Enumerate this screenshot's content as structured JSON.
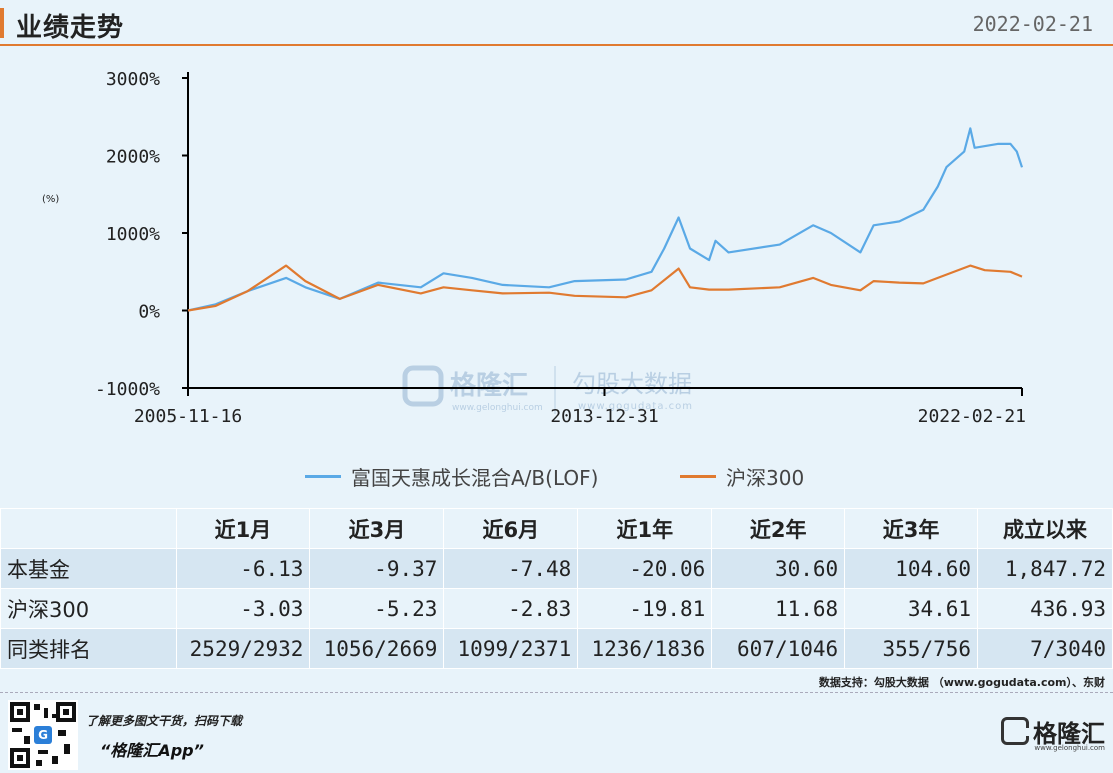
{
  "header": {
    "title": "业绩走势",
    "date": "2022-02-21"
  },
  "colors": {
    "accent": "#e07a30",
    "fund": "#5aa9e6",
    "index": "#e07a30",
    "background": "#e8f3fa"
  },
  "chart_data": {
    "type": "line",
    "y_unit_label": "(%)",
    "y_ticks": [
      "3000%",
      "2000%",
      "1000%",
      "0%",
      "-1000%"
    ],
    "y_tick_values": [
      3000,
      2000,
      1000,
      0,
      -1000
    ],
    "ylim": [
      -1000,
      3000
    ],
    "x_range": [
      "2005-11-16",
      "2022-02-21"
    ],
    "x_ticks": [
      "2005-11-16",
      "2013-12-31",
      "2022-02-21"
    ],
    "watermark": {
      "brand": "格隆汇",
      "brand_url": "www.gelonghui.com",
      "partner": "勾股大数据",
      "partner_url": "www.gogudata.com"
    },
    "series": [
      {
        "name": "富国天惠成长混合A/B(LOF)",
        "color": "#5aa9e6",
        "points": [
          [
            "2005-11-16",
            0
          ],
          [
            "2006-06-01",
            80
          ],
          [
            "2007-01-15",
            250
          ],
          [
            "2007-10-16",
            420
          ],
          [
            "2008-03-01",
            300
          ],
          [
            "2008-11-01",
            150
          ],
          [
            "2009-08-01",
            360
          ],
          [
            "2010-06-01",
            300
          ],
          [
            "2010-11-10",
            480
          ],
          [
            "2011-06-01",
            420
          ],
          [
            "2012-01-05",
            330
          ],
          [
            "2012-12-01",
            300
          ],
          [
            "2013-06-01",
            380
          ],
          [
            "2014-06-01",
            400
          ],
          [
            "2014-12-01",
            500
          ],
          [
            "2015-03-01",
            800
          ],
          [
            "2015-06-12",
            1200
          ],
          [
            "2015-09-01",
            800
          ],
          [
            "2016-01-15",
            650
          ],
          [
            "2016-03-01",
            900
          ],
          [
            "2016-06-01",
            750
          ],
          [
            "2017-06-01",
            850
          ],
          [
            "2018-01-25",
            1100
          ],
          [
            "2018-06-01",
            1000
          ],
          [
            "2018-12-28",
            750
          ],
          [
            "2019-04-01",
            1100
          ],
          [
            "2019-10-01",
            1150
          ],
          [
            "2020-03-20",
            1300
          ],
          [
            "2020-07-01",
            1600
          ],
          [
            "2020-09-01",
            1850
          ],
          [
            "2021-01-05",
            2050
          ],
          [
            "2021-02-18",
            2350
          ],
          [
            "2021-03-20",
            2100
          ],
          [
            "2021-09-01",
            2150
          ],
          [
            "2021-12-01",
            2150
          ],
          [
            "2022-01-15",
            2050
          ],
          [
            "2022-02-21",
            1848
          ]
        ]
      },
      {
        "name": "沪深300",
        "color": "#e07a30",
        "points": [
          [
            "2005-11-16",
            0
          ],
          [
            "2006-06-01",
            60
          ],
          [
            "2007-01-15",
            250
          ],
          [
            "2007-10-16",
            580
          ],
          [
            "2008-03-01",
            380
          ],
          [
            "2008-11-01",
            150
          ],
          [
            "2009-08-01",
            330
          ],
          [
            "2010-06-01",
            220
          ],
          [
            "2010-11-10",
            300
          ],
          [
            "2011-06-01",
            260
          ],
          [
            "2012-01-05",
            220
          ],
          [
            "2012-12-01",
            230
          ],
          [
            "2013-06-01",
            190
          ],
          [
            "2014-06-01",
            170
          ],
          [
            "2014-12-01",
            260
          ],
          [
            "2015-06-12",
            540
          ],
          [
            "2015-09-01",
            300
          ],
          [
            "2016-01-15",
            270
          ],
          [
            "2016-06-01",
            270
          ],
          [
            "2017-06-01",
            300
          ],
          [
            "2018-01-25",
            420
          ],
          [
            "2018-06-01",
            330
          ],
          [
            "2018-12-28",
            260
          ],
          [
            "2019-04-01",
            380
          ],
          [
            "2019-10-01",
            360
          ],
          [
            "2020-03-20",
            350
          ],
          [
            "2020-07-01",
            420
          ],
          [
            "2021-02-18",
            580
          ],
          [
            "2021-06-01",
            520
          ],
          [
            "2021-12-01",
            500
          ],
          [
            "2022-02-21",
            437
          ]
        ]
      }
    ]
  },
  "table": {
    "headers": [
      "",
      "近1月",
      "近3月",
      "近6月",
      "近1年",
      "近2年",
      "近3年",
      "成立以来"
    ],
    "rows": [
      {
        "label": "本基金",
        "values": [
          "-6.13",
          "-9.37",
          "-7.48",
          "-20.06",
          "30.60",
          "104.60",
          "1,847.72"
        ]
      },
      {
        "label": "沪深300",
        "values": [
          "-3.03",
          "-5.23",
          "-2.83",
          "-19.81",
          "11.68",
          "34.61",
          "436.93"
        ]
      },
      {
        "label": "同类排名",
        "values": [
          "2529/2932",
          "1056/2669",
          "1099/2371",
          "1236/1836",
          "607/1046",
          "355/756",
          "7/3040"
        ]
      }
    ]
  },
  "source": {
    "text": "数据支持：勾股大数据 （www.gogudata.com）、东财"
  },
  "footer": {
    "promo_line1": "了解更多图文干货，扫码下载",
    "promo_line2": "“格隆汇App”",
    "brand_name": "格隆汇",
    "brand_url": "www.gelonghui.com",
    "qr_center": "G"
  }
}
